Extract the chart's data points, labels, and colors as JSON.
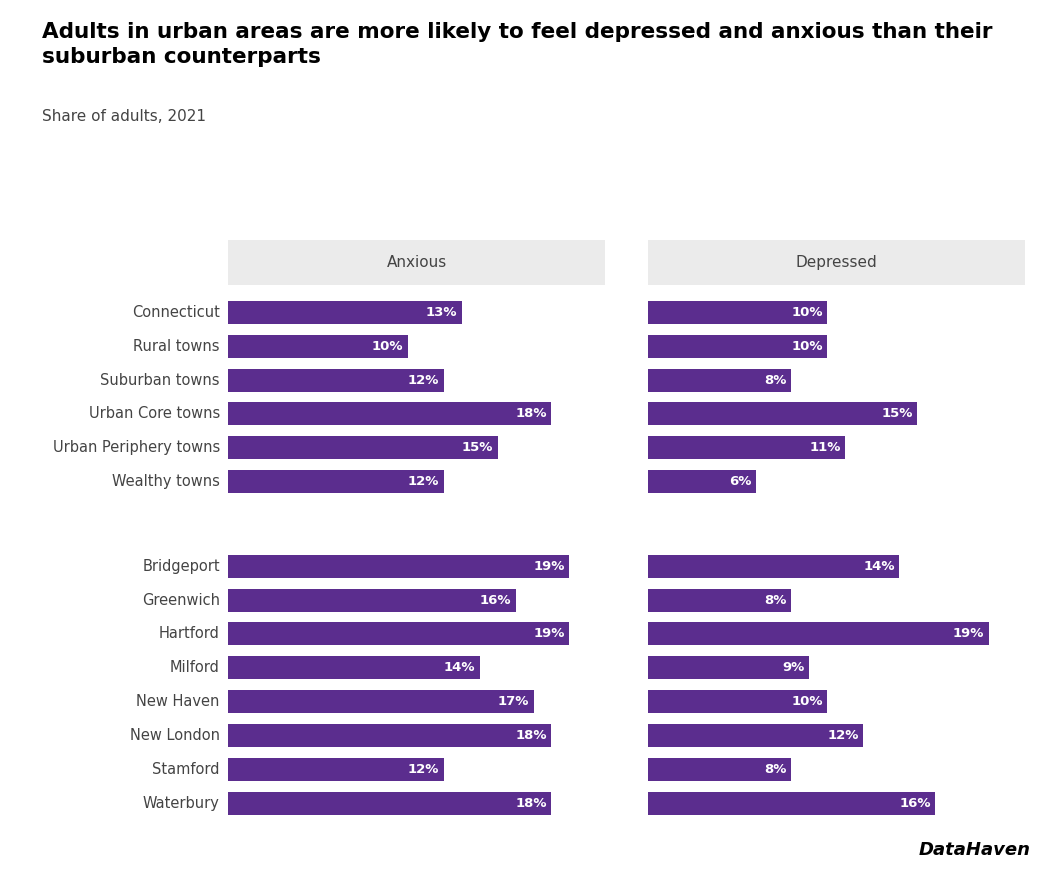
{
  "title": "Adults in urban areas are more likely to feel depressed and anxious than their\nsuburban counterparts",
  "subtitle": "Share of adults, 2021",
  "col1_header": "Anxious",
  "col2_header": "Depressed",
  "categories_group1": [
    "Connecticut",
    "Rural towns",
    "Suburban towns",
    "Urban Core towns",
    "Urban Periphery towns",
    "Wealthy towns"
  ],
  "anxious_group1": [
    13,
    10,
    12,
    18,
    15,
    12
  ],
  "depressed_group1": [
    10,
    10,
    8,
    15,
    11,
    6
  ],
  "categories_group2": [
    "Bridgeport",
    "Greenwich",
    "Hartford",
    "Milford",
    "New Haven",
    "New London",
    "Stamford",
    "Waterbury"
  ],
  "anxious_group2": [
    19,
    16,
    19,
    14,
    17,
    18,
    12,
    18
  ],
  "depressed_group2": [
    14,
    8,
    19,
    9,
    10,
    12,
    8,
    16
  ],
  "bar_color": "#5b2d8e",
  "header_bg": "#ebebeb",
  "bar_height": 0.68,
  "max_val": 20,
  "bg_color": "#ffffff",
  "text_color": "#ffffff",
  "label_color": "#444444",
  "title_color": "#000000",
  "datahaven_color": "#000000",
  "title_fontsize": 15.5,
  "subtitle_fontsize": 11,
  "label_fontsize": 10.5,
  "bar_label_fontsize": 9.5,
  "header_fontsize": 11
}
